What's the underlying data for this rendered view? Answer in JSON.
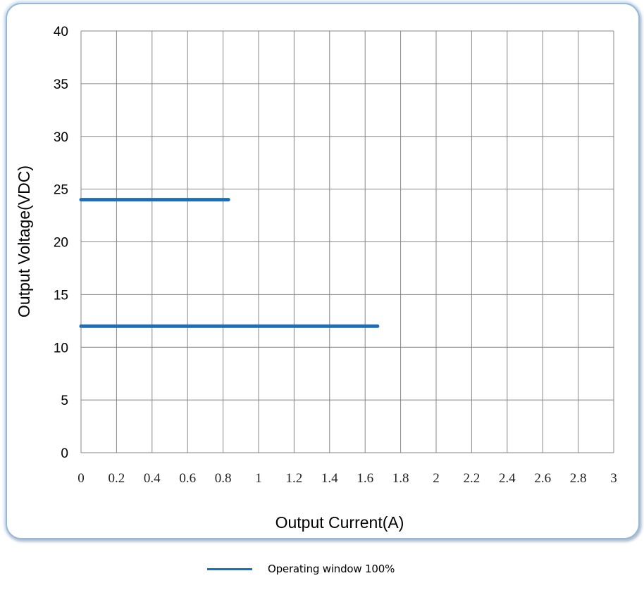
{
  "chart_data": {
    "type": "line",
    "title": "",
    "xlabel": "Output Current(A)",
    "ylabel": "Output Voltage(VDC)",
    "xlim": [
      0,
      3
    ],
    "ylim": [
      0,
      40
    ],
    "x_ticks": [
      "0",
      "0.2",
      "0.4",
      "0.6",
      "0.8",
      "1",
      "1.2",
      "1.4",
      "1.6",
      "1.8",
      "2",
      "2.2",
      "2.4",
      "2.6",
      "2.8",
      "3"
    ],
    "y_ticks": [
      "0",
      "5",
      "10",
      "15",
      "20",
      "25",
      "30",
      "35",
      "40"
    ],
    "grid": true,
    "legend_position": "bottom-center",
    "series": [
      {
        "name": "Operating window 100%",
        "color": "#1f6db4",
        "segments": [
          {
            "x": [
              0,
              0.83
            ],
            "y": [
              24,
              24
            ]
          },
          {
            "x": [
              0,
              1.67
            ],
            "y": [
              12,
              12
            ]
          }
        ]
      }
    ]
  }
}
